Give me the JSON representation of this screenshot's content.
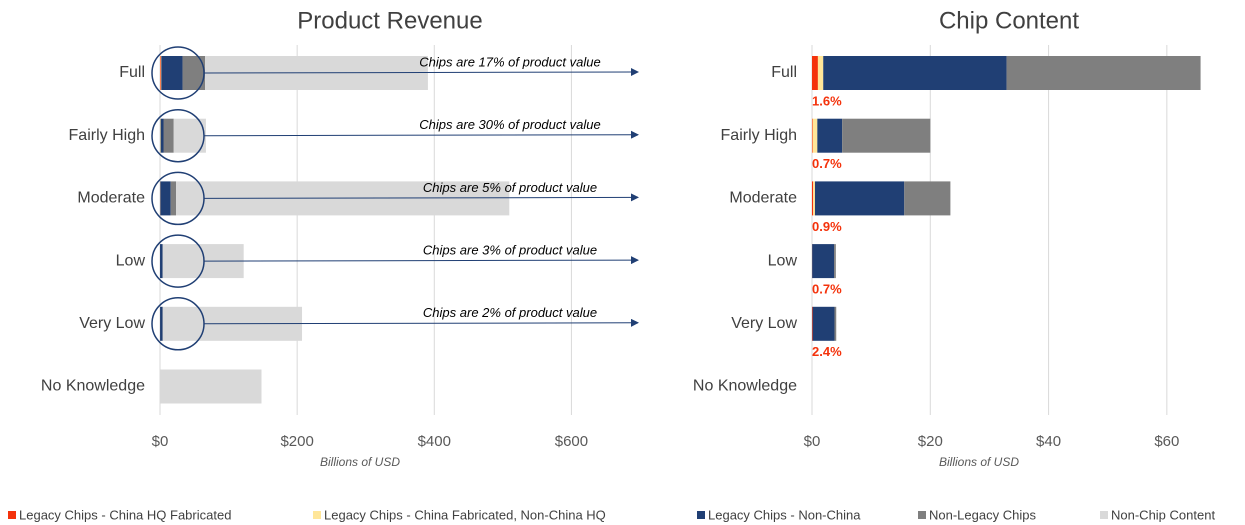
{
  "chart_data": [
    {
      "type": "hbar_stacked",
      "title": "Product Revenue",
      "xlabel": "Billions of USD",
      "categories": [
        "Full",
        "Fairly High",
        "Moderate",
        "Low",
        "Very Low",
        "No Knowledge"
      ],
      "series": [
        {
          "name": "Legacy Chips - China HQ Fabricated",
          "color": "#f4320b",
          "values": [
            1.0,
            0.1,
            0.2,
            0.03,
            0.1,
            0
          ]
        },
        {
          "name": "Legacy Chips - China Fabricated, Non-China HQ",
          "color": "#ffe699",
          "values": [
            0.9,
            0.8,
            0.3,
            0,
            0,
            0
          ]
        },
        {
          "name": "Legacy Chips - Non-China",
          "color": "#203f74",
          "values": [
            31.0,
            4.2,
            15.1,
            3.7,
            3.7,
            0
          ]
        },
        {
          "name": "Non-Legacy Chips",
          "color": "#7f7f7f",
          "values": [
            32.8,
            14.9,
            7.8,
            0.3,
            0.3,
            0
          ]
        },
        {
          "name": "Non-Chip Content",
          "color": "#d9d9d9",
          "values": [
            325,
            47,
            486,
            118,
            203,
            148
          ]
        }
      ],
      "annotations": [
        "Chips are 17% of product value",
        "Chips are 30% of product value",
        "Chips are 5% of product value",
        "Chips are 3% of product value",
        "Chips are 2% of product value"
      ],
      "xlim": [
        0,
        700
      ],
      "xticks": [
        {
          "value": 0,
          "label": "$0"
        },
        {
          "value": 200,
          "label": "$200"
        },
        {
          "value": 400,
          "label": "$400"
        },
        {
          "value": 600,
          "label": "$600"
        }
      ],
      "grid": true
    },
    {
      "type": "hbar_stacked",
      "title": "Chip Content",
      "xlabel": "Billions of USD",
      "categories": [
        "Full",
        "Fairly High",
        "Moderate",
        "Low",
        "Very Low",
        "No Knowledge"
      ],
      "series": [
        {
          "values": [
            1.0,
            0.1,
            0.2,
            0.03,
            0.1,
            0
          ]
        },
        {
          "values": [
            0.9,
            0.8,
            0.3,
            0,
            0,
            0
          ]
        },
        {
          "values": [
            31.0,
            4.2,
            15.1,
            3.7,
            3.7,
            0
          ]
        },
        {
          "values": [
            32.8,
            14.9,
            7.8,
            0.3,
            0.3,
            0
          ]
        }
      ],
      "bar_notes": [
        "1.6%",
        "0.7%",
        "0.9%",
        "0.7%",
        "2.4%"
      ],
      "xlim": [
        0,
        70
      ],
      "xticks": [
        {
          "value": 0,
          "label": "$0"
        },
        {
          "value": 20,
          "label": "$20"
        },
        {
          "value": 40,
          "label": "$40"
        },
        {
          "value": 60,
          "label": "$60"
        }
      ],
      "grid": true
    }
  ]
}
